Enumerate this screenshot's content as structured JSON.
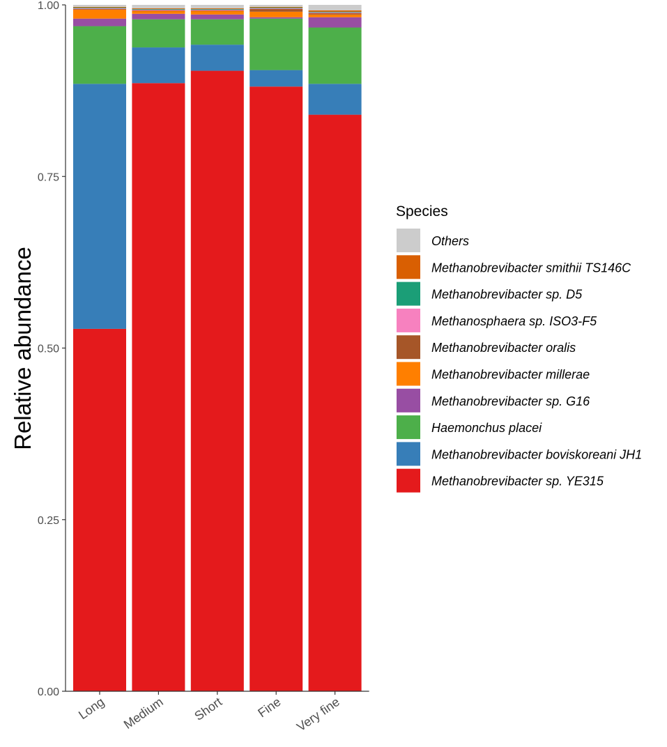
{
  "chart_data": {
    "type": "bar",
    "stacked": true,
    "title": "",
    "xlabel": "",
    "ylabel": "Relative abundance",
    "ylim": [
      0,
      1
    ],
    "y_ticks": [
      "0.00",
      "0.25",
      "0.50",
      "0.75",
      "1.00"
    ],
    "y_tick_values": [
      0,
      0.25,
      0.5,
      0.75,
      1.0
    ],
    "categories": [
      "Long",
      "Medium",
      "Short",
      "Fine",
      "Very fine"
    ],
    "legend_title": "Species",
    "legend_position": "right",
    "series": [
      {
        "name": "Methanobrevibacter sp. YE315",
        "color": "#E41A1C",
        "values": [
          0.528,
          0.886,
          0.904,
          0.881,
          0.84
        ]
      },
      {
        "name": "Methanobrevibacter boviskoreani JH1",
        "color": "#377EB8",
        "values": [
          0.357,
          0.052,
          0.038,
          0.024,
          0.045
        ]
      },
      {
        "name": "Haemonchus placei",
        "color": "#4DAF4A",
        "values": [
          0.084,
          0.041,
          0.037,
          0.075,
          0.082
        ]
      },
      {
        "name": "Methanobrevibacter sp. G16",
        "color": "#984EA3",
        "values": [
          0.011,
          0.008,
          0.007,
          0.002,
          0.015
        ]
      },
      {
        "name": "Methanobrevibacter millerae",
        "color": "#FF7F00",
        "values": [
          0.013,
          0.004,
          0.005,
          0.008,
          0.004
        ]
      },
      {
        "name": "Methanobrevibacter oralis",
        "color": "#A65628",
        "values": [
          0.001,
          0.001,
          0.001,
          0.004,
          0.002
        ]
      },
      {
        "name": "Methanosphaera sp. ISO3-F5",
        "color": "#F781BF",
        "values": [
          0.001,
          0.001,
          0.001,
          0.001,
          0.001
        ]
      },
      {
        "name": "Methanobrevibacter sp. D5",
        "color": "#1B9E77",
        "values": [
          0.001,
          0.001,
          0.001,
          0.001,
          0.001
        ]
      },
      {
        "name": "Methanobrevibacter smithii TS146C",
        "color": "#D95F02",
        "values": [
          0.001,
          0.001,
          0.001,
          0.001,
          0.002
        ]
      },
      {
        "name": "Others",
        "color": "#CCCCCC",
        "values": [
          0.003,
          0.005,
          0.005,
          0.003,
          0.008
        ]
      }
    ]
  }
}
